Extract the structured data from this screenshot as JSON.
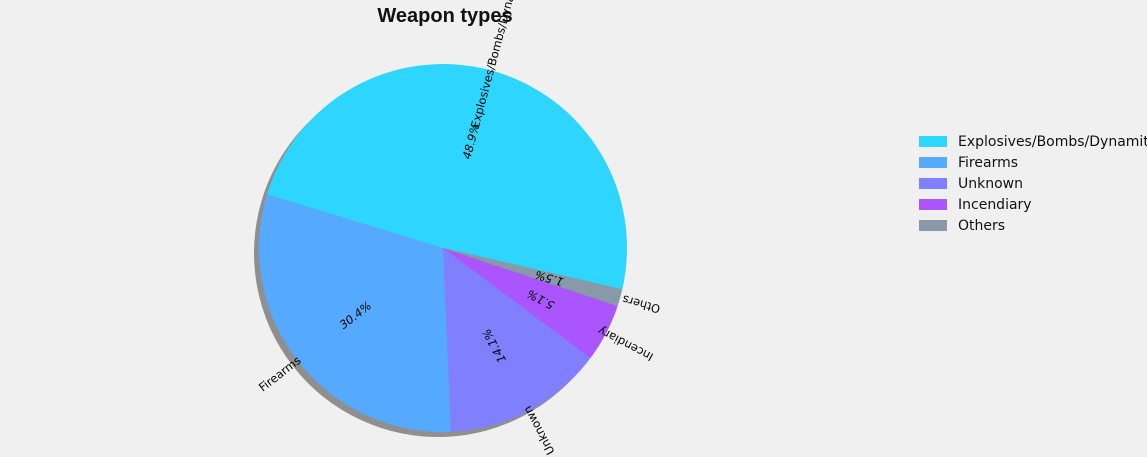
{
  "chart_data": {
    "type": "pie",
    "title": "Weapon types",
    "start_angle_deg": -13,
    "shadow": true,
    "legend_position": "right",
    "slices": [
      {
        "label": "Explosives/Bombs/Dynamite",
        "value": 48.9,
        "pct_label": "48.9%",
        "color": "#2dd5ff"
      },
      {
        "label": "Firearms",
        "value": 30.4,
        "pct_label": "30.4%",
        "color": "#55aaff"
      },
      {
        "label": "Unknown",
        "value": 14.1,
        "pct_label": "14.1%",
        "color": "#8080ff"
      },
      {
        "label": "Incendiary",
        "value": 5.1,
        "pct_label": "5.1%",
        "color": "#aa55ff"
      },
      {
        "label": "Others",
        "value": 1.5,
        "pct_label": "1.5%",
        "color": "#8899a8"
      }
    ]
  }
}
